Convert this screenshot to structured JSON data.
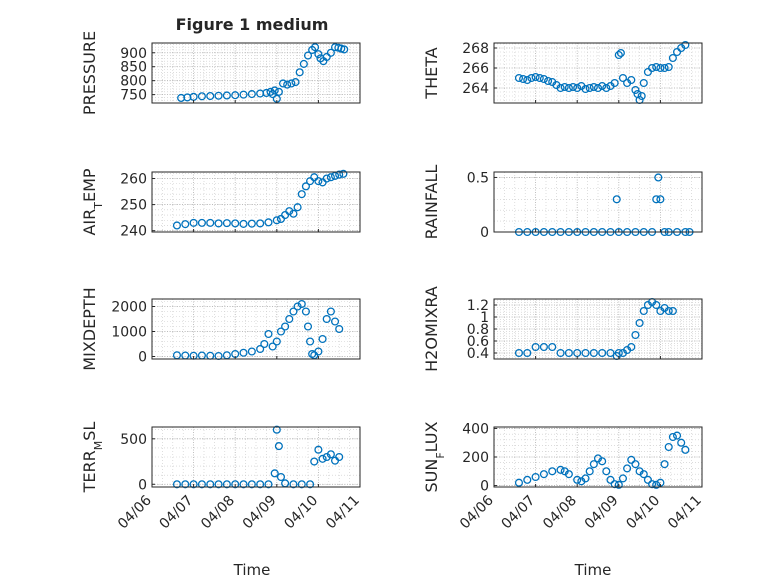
{
  "figure": {
    "title": "Figure 1 medium",
    "xlabel": "Time",
    "x_ticks": [
      "04/06",
      "04/07",
      "04/08",
      "04/09",
      "04/10",
      "04/11"
    ],
    "marker_color": "#0072BD",
    "axis_color": "#262626",
    "grid": "on (major and minor, dotted)"
  },
  "chart_data": [
    {
      "id": "pressure",
      "type": "scatter",
      "ylabel": "PRESSURE",
      "title": "Figure 1 medium",
      "ylim": [
        720,
        935
      ],
      "yticks": [
        750,
        800,
        850,
        900
      ],
      "points": [
        [
          0.7,
          738
        ],
        [
          0.85,
          740
        ],
        [
          1.0,
          742
        ],
        [
          1.2,
          744
        ],
        [
          1.4,
          745
        ],
        [
          1.6,
          746
        ],
        [
          1.8,
          747
        ],
        [
          2.0,
          748
        ],
        [
          2.2,
          750
        ],
        [
          2.4,
          752
        ],
        [
          2.6,
          754
        ],
        [
          2.75,
          756
        ],
        [
          2.85,
          760
        ],
        [
          2.9,
          752
        ],
        [
          2.95,
          765
        ],
        [
          3.0,
          735
        ],
        [
          3.05,
          760
        ],
        [
          3.15,
          790
        ],
        [
          3.25,
          786
        ],
        [
          3.35,
          790
        ],
        [
          3.45,
          795
        ],
        [
          3.55,
          830
        ],
        [
          3.65,
          860
        ],
        [
          3.75,
          890
        ],
        [
          3.85,
          910
        ],
        [
          3.92,
          920
        ],
        [
          4.0,
          895
        ],
        [
          4.05,
          880
        ],
        [
          4.12,
          870
        ],
        [
          4.2,
          885
        ],
        [
          4.3,
          900
        ],
        [
          4.4,
          920
        ],
        [
          4.48,
          918
        ],
        [
          4.55,
          915
        ],
        [
          4.62,
          912
        ]
      ]
    },
    {
      "id": "theta",
      "type": "scatter",
      "ylabel": "THETA",
      "ylim": [
        262.5,
        268.5
      ],
      "yticks": [
        264,
        266,
        268
      ],
      "points": [
        [
          0.6,
          265.0
        ],
        [
          0.7,
          264.9
        ],
        [
          0.8,
          264.8
        ],
        [
          0.9,
          265.0
        ],
        [
          1.0,
          265.1
        ],
        [
          1.1,
          265.0
        ],
        [
          1.2,
          264.9
        ],
        [
          1.3,
          264.7
        ],
        [
          1.4,
          264.6
        ],
        [
          1.5,
          264.3
        ],
        [
          1.6,
          264.0
        ],
        [
          1.7,
          264.1
        ],
        [
          1.8,
          264.0
        ],
        [
          1.9,
          264.1
        ],
        [
          2.0,
          264.0
        ],
        [
          2.1,
          264.2
        ],
        [
          2.2,
          263.9
        ],
        [
          2.3,
          264.0
        ],
        [
          2.4,
          264.1
        ],
        [
          2.5,
          264.0
        ],
        [
          2.6,
          264.2
        ],
        [
          2.7,
          264.0
        ],
        [
          2.8,
          264.2
        ],
        [
          2.9,
          264.5
        ],
        [
          3.0,
          267.3
        ],
        [
          3.05,
          267.5
        ],
        [
          3.1,
          265.0
        ],
        [
          3.2,
          264.5
        ],
        [
          3.3,
          264.8
        ],
        [
          3.4,
          263.8
        ],
        [
          3.45,
          263.4
        ],
        [
          3.5,
          262.8
        ],
        [
          3.55,
          263.2
        ],
        [
          3.6,
          264.5
        ],
        [
          3.7,
          265.6
        ],
        [
          3.8,
          266.0
        ],
        [
          3.9,
          266.1
        ],
        [
          4.0,
          266.0
        ],
        [
          4.1,
          266.0
        ],
        [
          4.2,
          266.1
        ],
        [
          4.3,
          267.0
        ],
        [
          4.4,
          267.6
        ],
        [
          4.5,
          268.0
        ],
        [
          4.6,
          268.3
        ]
      ]
    },
    {
      "id": "air_temp",
      "type": "scatter",
      "ylabel": "AIR_TEMP",
      "ylim": [
        239.5,
        262.5
      ],
      "yticks": [
        240,
        250,
        260
      ],
      "points": [
        [
          0.6,
          242.0
        ],
        [
          0.8,
          242.5
        ],
        [
          1.0,
          243.0
        ],
        [
          1.2,
          243.0
        ],
        [
          1.4,
          243.0
        ],
        [
          1.6,
          242.8
        ],
        [
          1.8,
          242.9
        ],
        [
          2.0,
          242.8
        ],
        [
          2.2,
          242.6
        ],
        [
          2.4,
          242.7
        ],
        [
          2.6,
          242.8
        ],
        [
          2.8,
          243.2
        ],
        [
          3.0,
          244.0
        ],
        [
          3.1,
          244.5
        ],
        [
          3.2,
          246.0
        ],
        [
          3.3,
          247.5
        ],
        [
          3.4,
          246.5
        ],
        [
          3.5,
          249.0
        ],
        [
          3.6,
          254.0
        ],
        [
          3.7,
          257.0
        ],
        [
          3.8,
          259.0
        ],
        [
          3.9,
          260.5
        ],
        [
          4.0,
          259.0
        ],
        [
          4.1,
          258.5
        ],
        [
          4.2,
          260.0
        ],
        [
          4.3,
          260.5
        ],
        [
          4.4,
          261.0
        ],
        [
          4.5,
          261.5
        ],
        [
          4.6,
          261.8
        ]
      ]
    },
    {
      "id": "rainfall",
      "type": "scatter",
      "ylabel": "RAINFALL",
      "ylim": [
        0,
        0.55
      ],
      "yticks": [
        0,
        0.5
      ],
      "points": [
        [
          0.6,
          0
        ],
        [
          0.8,
          0
        ],
        [
          1.0,
          0
        ],
        [
          1.2,
          0
        ],
        [
          1.4,
          0
        ],
        [
          1.6,
          0
        ],
        [
          1.8,
          0
        ],
        [
          2.0,
          0
        ],
        [
          2.2,
          0
        ],
        [
          2.4,
          0
        ],
        [
          2.6,
          0
        ],
        [
          2.8,
          0
        ],
        [
          2.95,
          0.3
        ],
        [
          3.0,
          0
        ],
        [
          3.2,
          0
        ],
        [
          3.4,
          0
        ],
        [
          3.6,
          0
        ],
        [
          3.8,
          0
        ],
        [
          3.9,
          0.3
        ],
        [
          3.95,
          0.5
        ],
        [
          4.0,
          0.3
        ],
        [
          4.1,
          0
        ],
        [
          4.2,
          0
        ],
        [
          4.4,
          0
        ],
        [
          4.6,
          0
        ],
        [
          4.7,
          0
        ]
      ]
    },
    {
      "id": "mixdepth",
      "type": "scatter",
      "ylabel": "MIXDEPTH",
      "ylim": [
        -100,
        2300
      ],
      "yticks": [
        0,
        1000,
        2000
      ],
      "points": [
        [
          0.6,
          50
        ],
        [
          0.8,
          40
        ],
        [
          1.0,
          30
        ],
        [
          1.2,
          40
        ],
        [
          1.4,
          30
        ],
        [
          1.6,
          20
        ],
        [
          1.8,
          50
        ],
        [
          2.0,
          100
        ],
        [
          2.2,
          150
        ],
        [
          2.4,
          200
        ],
        [
          2.6,
          300
        ],
        [
          2.7,
          500
        ],
        [
          2.8,
          900
        ],
        [
          2.9,
          400
        ],
        [
          3.0,
          600
        ],
        [
          3.1,
          1000
        ],
        [
          3.2,
          1200
        ],
        [
          3.3,
          1500
        ],
        [
          3.4,
          1800
        ],
        [
          3.5,
          2000
        ],
        [
          3.6,
          2100
        ],
        [
          3.7,
          1800
        ],
        [
          3.75,
          1200
        ],
        [
          3.8,
          600
        ],
        [
          3.85,
          100
        ],
        [
          3.9,
          50
        ],
        [
          4.0,
          200
        ],
        [
          4.1,
          700
        ],
        [
          4.2,
          1500
        ],
        [
          4.3,
          1800
        ],
        [
          4.4,
          1400
        ],
        [
          4.5,
          1100
        ]
      ]
    },
    {
      "id": "h2omixra",
      "type": "scatter",
      "ylabel": "H2OMIXRA",
      "ylim": [
        0.3,
        1.3
      ],
      "yticks": [
        0.4,
        0.6,
        0.8,
        1,
        1.2
      ],
      "points": [
        [
          0.6,
          0.4
        ],
        [
          0.8,
          0.4
        ],
        [
          1.0,
          0.5
        ],
        [
          1.2,
          0.5
        ],
        [
          1.4,
          0.5
        ],
        [
          1.6,
          0.4
        ],
        [
          1.8,
          0.4
        ],
        [
          2.0,
          0.4
        ],
        [
          2.2,
          0.4
        ],
        [
          2.4,
          0.4
        ],
        [
          2.6,
          0.4
        ],
        [
          2.8,
          0.4
        ],
        [
          2.95,
          0.35
        ],
        [
          3.0,
          0.4
        ],
        [
          3.1,
          0.4
        ],
        [
          3.2,
          0.45
        ],
        [
          3.3,
          0.5
        ],
        [
          3.4,
          0.7
        ],
        [
          3.5,
          0.9
        ],
        [
          3.6,
          1.1
        ],
        [
          3.7,
          1.2
        ],
        [
          3.8,
          1.25
        ],
        [
          3.9,
          1.2
        ],
        [
          4.0,
          1.1
        ],
        [
          4.1,
          1.15
        ],
        [
          4.2,
          1.1
        ],
        [
          4.3,
          1.1
        ]
      ]
    },
    {
      "id": "terr_msl",
      "type": "scatter",
      "ylabel": "TERR_MSL",
      "ylim": [
        -30,
        630
      ],
      "yticks": [
        0,
        500
      ],
      "points": [
        [
          0.6,
          0
        ],
        [
          0.8,
          0
        ],
        [
          1.0,
          0
        ],
        [
          1.2,
          0
        ],
        [
          1.4,
          0
        ],
        [
          1.6,
          0
        ],
        [
          1.8,
          0
        ],
        [
          2.0,
          0
        ],
        [
          2.2,
          0
        ],
        [
          2.4,
          0
        ],
        [
          2.6,
          0
        ],
        [
          2.8,
          0
        ],
        [
          2.95,
          120
        ],
        [
          3.0,
          600
        ],
        [
          3.05,
          420
        ],
        [
          3.1,
          80
        ],
        [
          3.2,
          10
        ],
        [
          3.4,
          0
        ],
        [
          3.6,
          0
        ],
        [
          3.8,
          0
        ],
        [
          3.9,
          250
        ],
        [
          4.0,
          380
        ],
        [
          4.1,
          280
        ],
        [
          4.2,
          300
        ],
        [
          4.3,
          330
        ],
        [
          4.4,
          260
        ],
        [
          4.5,
          300
        ]
      ]
    },
    {
      "id": "sun_flux",
      "type": "scatter",
      "ylabel": "SUN_FLUX",
      "ylim": [
        -10,
        410
      ],
      "yticks": [
        0,
        200,
        400
      ],
      "points": [
        [
          0.6,
          20
        ],
        [
          0.8,
          40
        ],
        [
          1.0,
          60
        ],
        [
          1.2,
          80
        ],
        [
          1.4,
          100
        ],
        [
          1.6,
          110
        ],
        [
          1.7,
          100
        ],
        [
          1.8,
          80
        ],
        [
          2.0,
          40
        ],
        [
          2.1,
          30
        ],
        [
          2.2,
          50
        ],
        [
          2.3,
          100
        ],
        [
          2.4,
          150
        ],
        [
          2.5,
          190
        ],
        [
          2.6,
          170
        ],
        [
          2.7,
          100
        ],
        [
          2.8,
          40
        ],
        [
          2.9,
          10
        ],
        [
          3.0,
          5
        ],
        [
          3.1,
          50
        ],
        [
          3.2,
          120
        ],
        [
          3.3,
          180
        ],
        [
          3.4,
          150
        ],
        [
          3.5,
          100
        ],
        [
          3.6,
          80
        ],
        [
          3.7,
          40
        ],
        [
          3.8,
          10
        ],
        [
          3.9,
          5
        ],
        [
          4.0,
          20
        ],
        [
          4.1,
          150
        ],
        [
          4.2,
          270
        ],
        [
          4.3,
          340
        ],
        [
          4.4,
          350
        ],
        [
          4.5,
          300
        ],
        [
          4.6,
          250
        ]
      ]
    }
  ]
}
